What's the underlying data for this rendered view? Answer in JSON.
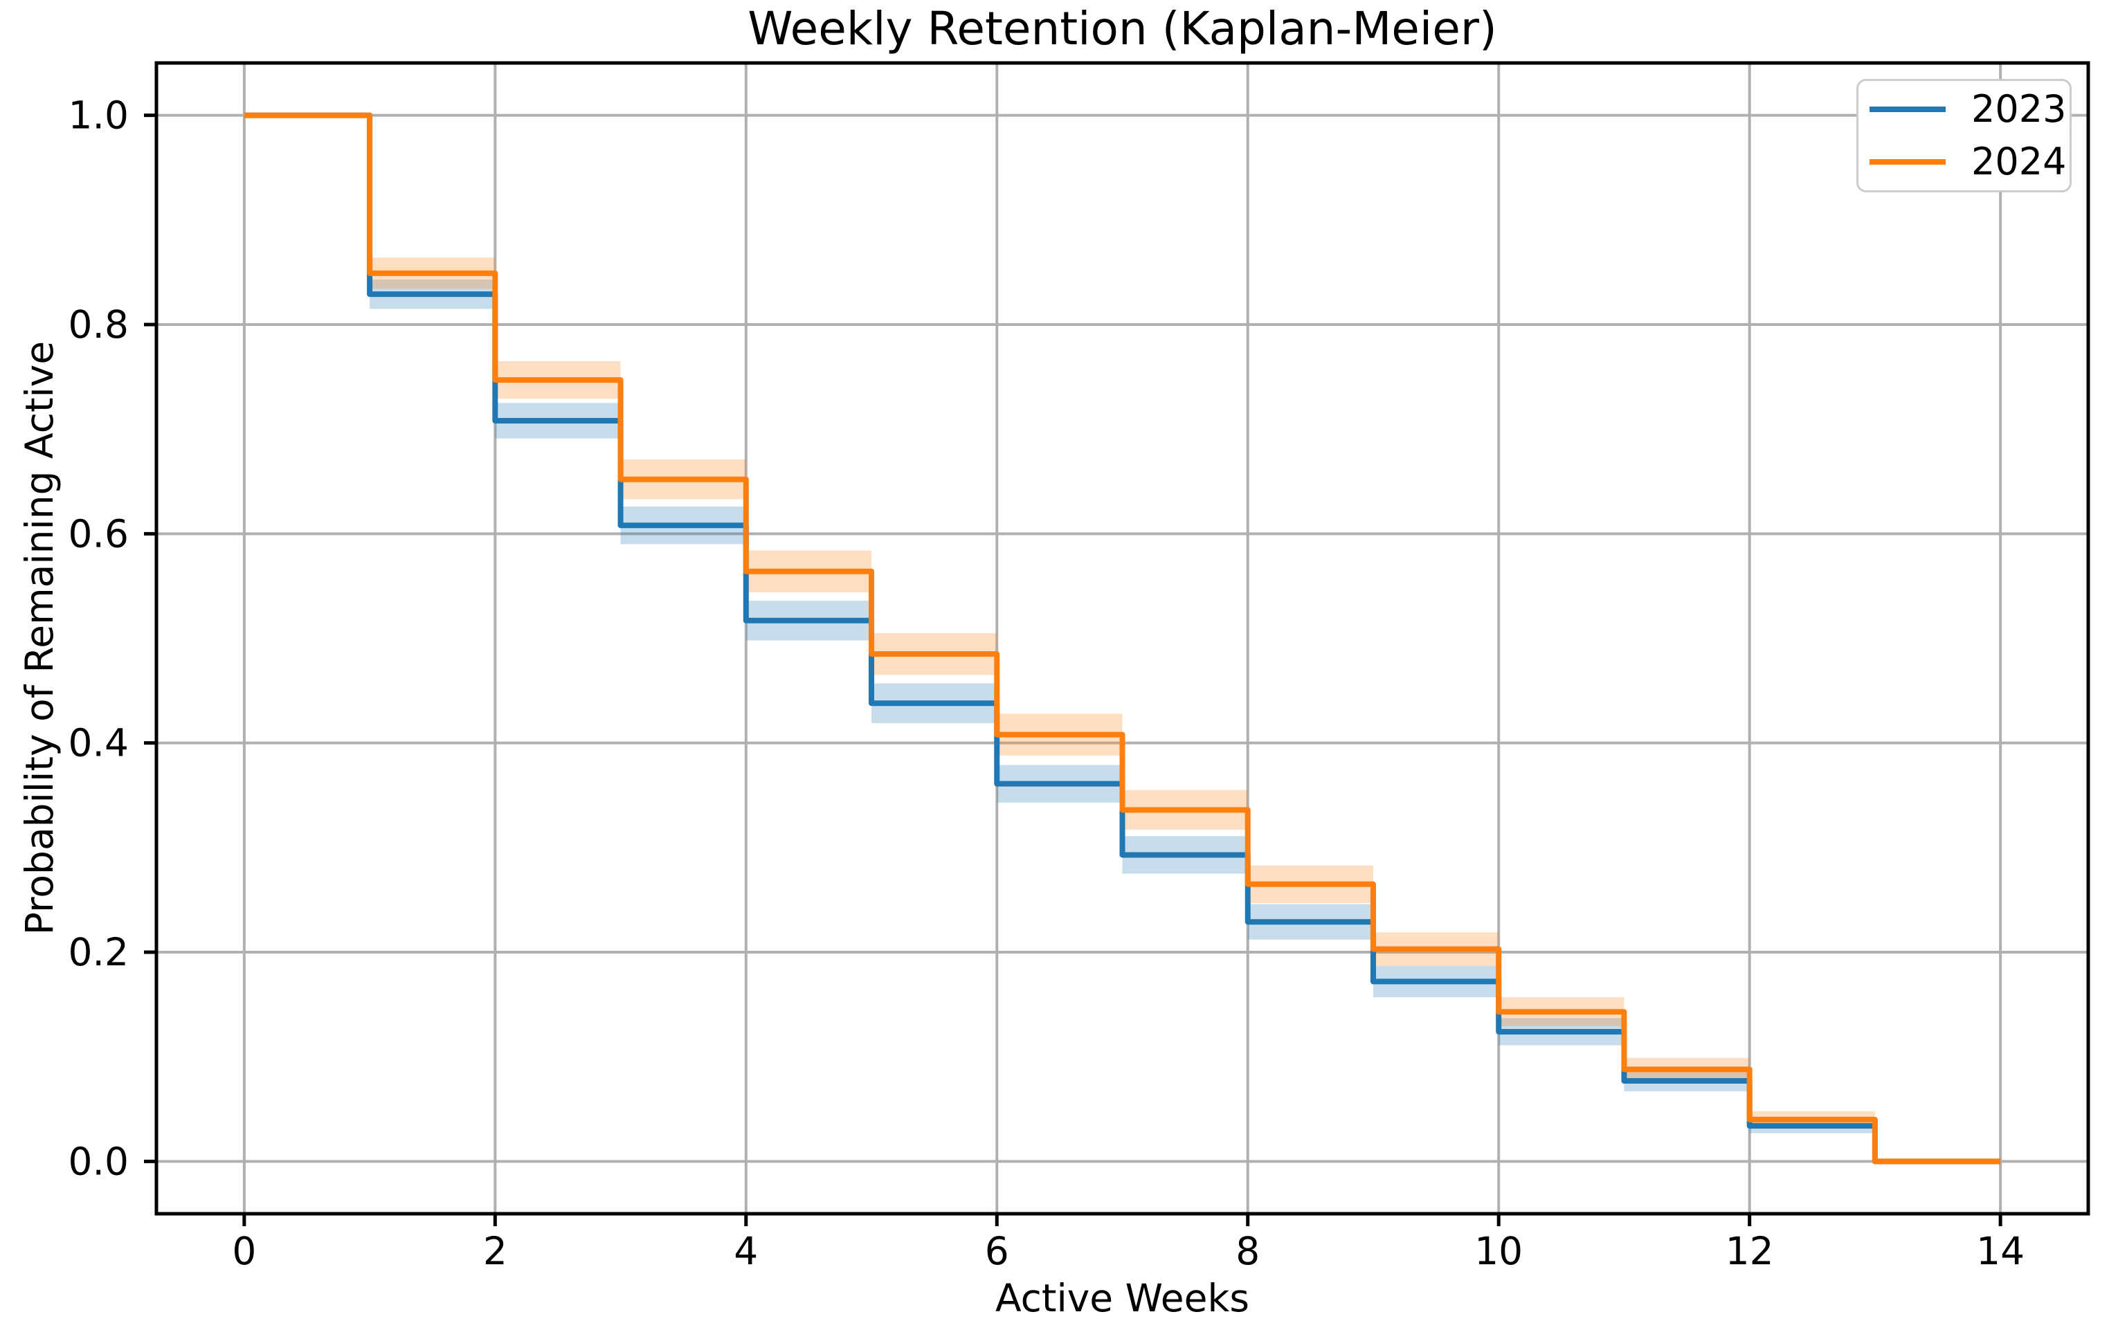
{
  "figure": {
    "title": "Weekly Retention (Kaplan-Meier)",
    "xlabel": "Active Weeks",
    "ylabel": "Probability of Remaining Active"
  },
  "legend": {
    "position": "upper right",
    "items": [
      {
        "label": "2023",
        "color": "#1f77b4"
      },
      {
        "label": "2024",
        "color": "#ff7f0e"
      }
    ]
  },
  "colors": {
    "series_2023": "#1f77b4",
    "series_2024": "#ff7f0e",
    "grid": "#b0b0b0",
    "spine": "#000000",
    "text": "#000000",
    "legend_border": "#cccccc",
    "background": "#ffffff"
  },
  "chart_data": {
    "type": "line",
    "subtype": "kaplan-meier-step-post",
    "title": "Weekly Retention (Kaplan-Meier)",
    "xlabel": "Active Weeks",
    "ylabel": "Probability of Remaining Active",
    "grid": true,
    "legend_position": "upper right",
    "xlim": [
      -0.7,
      14.7
    ],
    "ylim": [
      -0.05,
      1.05
    ],
    "xticks": [
      0,
      2,
      4,
      6,
      8,
      10,
      12,
      14
    ],
    "xticklabels": [
      "0",
      "2",
      "4",
      "6",
      "8",
      "10",
      "12",
      "14"
    ],
    "yticks": [
      0.0,
      0.2,
      0.4,
      0.6,
      0.8,
      1.0
    ],
    "yticklabels": [
      "0.0",
      "0.2",
      "0.4",
      "0.6",
      "0.8",
      "1.0"
    ],
    "step_x": [
      0,
      1,
      2,
      3,
      4,
      5,
      6,
      7,
      8,
      9,
      10,
      11,
      12,
      13,
      14
    ],
    "band_x_range": [
      1,
      13
    ],
    "series": [
      {
        "name": "2023",
        "color": "#1f77b4",
        "band_alpha": 0.25,
        "survival": [
          1.0,
          0.829,
          0.708,
          0.608,
          0.517,
          0.438,
          0.361,
          0.293,
          0.229,
          0.172,
          0.124,
          0.077,
          0.034,
          0.0
        ],
        "ci_halfwidth": [
          0,
          0.014,
          0.017,
          0.018,
          0.019,
          0.019,
          0.018,
          0.018,
          0.017,
          0.015,
          0.013,
          0.01,
          0.007,
          0
        ]
      },
      {
        "name": "2024",
        "color": "#ff7f0e",
        "band_alpha": 0.25,
        "survival": [
          1.0,
          0.849,
          0.747,
          0.652,
          0.564,
          0.485,
          0.408,
          0.336,
          0.265,
          0.203,
          0.143,
          0.088,
          0.04,
          0.0
        ],
        "ci_halfwidth": [
          0,
          0.015,
          0.018,
          0.019,
          0.02,
          0.02,
          0.02,
          0.019,
          0.018,
          0.016,
          0.014,
          0.011,
          0.008,
          0
        ]
      }
    ]
  }
}
